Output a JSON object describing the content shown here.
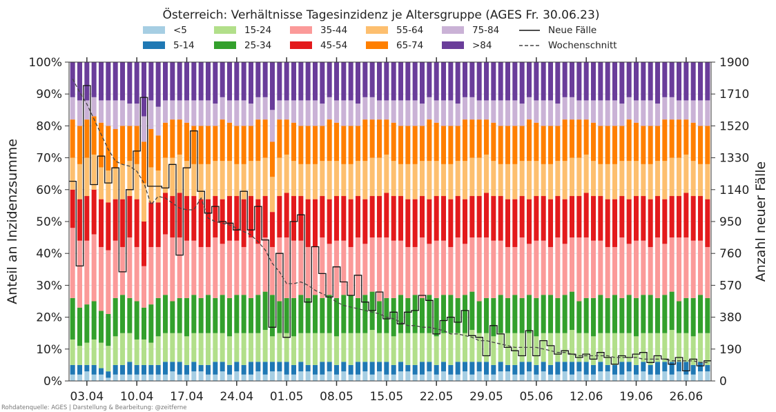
{
  "chart_data": {
    "type": "bar",
    "title": "Österreich: Verhältnisse Tagesinzidenz je Altersgruppe (AGES Fr. 30.06.23)",
    "ylabel_left": "Anteil an Inzidenzsumme",
    "ylabel_right": "Anzahl neuer Fälle",
    "source": "Rohdatenquelle: AGES | Darstellung & Bearbeitung: @zeitferne",
    "ylim_left": [
      0,
      100
    ],
    "ylim_right": [
      0,
      1900
    ],
    "left_ticks": [
      "0%",
      "10%",
      "20%",
      "30%",
      "40%",
      "50%",
      "60%",
      "70%",
      "80%",
      "90%",
      "100%"
    ],
    "right_ticks": [
      "0",
      "190",
      "380",
      "570",
      "760",
      "950",
      "1140",
      "1330",
      "1520",
      "1710",
      "1900"
    ],
    "x_ticks": [
      {
        "label": "03.04",
        "day": 2
      },
      {
        "label": "10.04",
        "day": 9
      },
      {
        "label": "17.04",
        "day": 16
      },
      {
        "label": "24.04",
        "day": 23
      },
      {
        "label": "01.05",
        "day": 30
      },
      {
        "label": "08.05",
        "day": 37
      },
      {
        "label": "15.05",
        "day": 44
      },
      {
        "label": "22.05",
        "day": 51
      },
      {
        "label": "29.05",
        "day": 58
      },
      {
        "label": "05.06",
        "day": 65
      },
      {
        "label": "12.06",
        "day": 72
      },
      {
        "label": "19.06",
        "day": 79
      },
      {
        "label": "26.06",
        "day": 86
      }
    ],
    "grid": true,
    "legend_position": "top",
    "age_groups": [
      {
        "name": "<5",
        "color": "#a6cee3"
      },
      {
        "name": "5-14",
        "color": "#1f78b4"
      },
      {
        "name": "15-24",
        "color": "#b2df8a"
      },
      {
        "name": "25-34",
        "color": "#33a02c"
      },
      {
        "name": "35-44",
        "color": "#fb9a99"
      },
      {
        "name": "45-54",
        "color": "#e31a1c"
      },
      {
        "name": "55-64",
        "color": "#fdbf6f"
      },
      {
        "name": "65-74",
        "color": "#ff7f00"
      },
      {
        "name": "75-84",
        "color": "#cab2d6"
      },
      {
        "name": ">84",
        "color": "#6a3d9a"
      }
    ],
    "line_series": [
      {
        "name": "Neue Fälle",
        "style": "solid",
        "color": "#111111"
      },
      {
        "name": "Wochenschnitt",
        "style": "dashed",
        "color": "#444444"
      }
    ],
    "dates": [
      "2023-04-01",
      "2023-04-02",
      "2023-04-03",
      "2023-04-04",
      "2023-04-05",
      "2023-04-06",
      "2023-04-07",
      "2023-04-08",
      "2023-04-09",
      "2023-04-10",
      "2023-04-11",
      "2023-04-12",
      "2023-04-13",
      "2023-04-14",
      "2023-04-15",
      "2023-04-16",
      "2023-04-17",
      "2023-04-18",
      "2023-04-19",
      "2023-04-20",
      "2023-04-21",
      "2023-04-22",
      "2023-04-23",
      "2023-04-24",
      "2023-04-25",
      "2023-04-26",
      "2023-04-27",
      "2023-04-28",
      "2023-04-29",
      "2023-04-30",
      "2023-05-01",
      "2023-05-02",
      "2023-05-03",
      "2023-05-04",
      "2023-05-05",
      "2023-05-06",
      "2023-05-07",
      "2023-05-08",
      "2023-05-09",
      "2023-05-10",
      "2023-05-11",
      "2023-05-12",
      "2023-05-13",
      "2023-05-14",
      "2023-05-15",
      "2023-05-16",
      "2023-05-17",
      "2023-05-18",
      "2023-05-19",
      "2023-05-20",
      "2023-05-21",
      "2023-05-22",
      "2023-05-23",
      "2023-05-24",
      "2023-05-25",
      "2023-05-26",
      "2023-05-27",
      "2023-05-28",
      "2023-05-29",
      "2023-05-30",
      "2023-05-31",
      "2023-06-01",
      "2023-06-02",
      "2023-06-03",
      "2023-06-04",
      "2023-06-05",
      "2023-06-06",
      "2023-06-07",
      "2023-06-08",
      "2023-06-09",
      "2023-06-10",
      "2023-06-11",
      "2023-06-12",
      "2023-06-13",
      "2023-06-14",
      "2023-06-15",
      "2023-06-16",
      "2023-06-17",
      "2023-06-18",
      "2023-06-19",
      "2023-06-20",
      "2023-06-21",
      "2023-06-22",
      "2023-06-23",
      "2023-06-24",
      "2023-06-25",
      "2023-06-26",
      "2023-06-27",
      "2023-06-28",
      "2023-06-29"
    ],
    "shares_pct": [
      [
        2,
        3,
        8,
        13,
        22,
        12,
        10,
        12,
        7,
        11
      ],
      [
        2,
        3,
        6,
        12,
        21,
        13,
        11,
        12,
        8,
        12
      ],
      [
        3,
        2,
        7,
        12,
        20,
        14,
        12,
        12,
        6,
        12
      ],
      [
        2,
        3,
        8,
        12,
        21,
        14,
        11,
        12,
        6,
        11
      ],
      [
        2,
        2,
        8,
        10,
        20,
        15,
        10,
        14,
        7,
        12
      ],
      [
        1,
        2,
        8,
        10,
        20,
        15,
        10,
        14,
        8,
        12
      ],
      [
        2,
        3,
        9,
        12,
        18,
        13,
        10,
        12,
        9,
        12
      ],
      [
        2,
        3,
        10,
        12,
        15,
        15,
        11,
        12,
        8,
        12
      ],
      [
        2,
        4,
        9,
        11,
        19,
        13,
        11,
        11,
        7,
        13
      ],
      [
        2,
        3,
        8,
        12,
        17,
        15,
        11,
        12,
        7,
        13
      ],
      [
        2,
        3,
        8,
        10,
        13,
        14,
        12,
        13,
        8,
        17
      ],
      [
        2,
        3,
        7,
        12,
        18,
        14,
        11,
        12,
        9,
        12
      ],
      [
        2,
        3,
        9,
        12,
        16,
        14,
        10,
        11,
        9,
        14
      ],
      [
        2,
        4,
        9,
        12,
        19,
        13,
        11,
        11,
        7,
        12
      ],
      [
        3,
        3,
        9,
        10,
        20,
        13,
        12,
        12,
        6,
        12
      ],
      [
        2,
        4,
        9,
        11,
        19,
        14,
        12,
        11,
        6,
        12
      ],
      [
        2,
        3,
        9,
        12,
        18,
        14,
        11,
        12,
        7,
        12
      ],
      [
        3,
        3,
        9,
        12,
        17,
        14,
        10,
        12,
        8,
        12
      ],
      [
        3,
        2,
        10,
        11,
        16,
        15,
        11,
        12,
        8,
        12
      ],
      [
        2,
        3,
        10,
        12,
        15,
        15,
        11,
        12,
        8,
        12
      ],
      [
        2,
        4,
        9,
        11,
        19,
        13,
        11,
        11,
        7,
        13
      ],
      [
        3,
        3,
        9,
        12,
        16,
        14,
        12,
        13,
        7,
        11
      ],
      [
        2,
        3,
        9,
        12,
        18,
        14,
        11,
        12,
        7,
        12
      ],
      [
        3,
        3,
        9,
        12,
        17,
        14,
        10,
        12,
        8,
        12
      ],
      [
        2,
        3,
        10,
        12,
        15,
        15,
        11,
        12,
        8,
        12
      ],
      [
        2,
        4,
        9,
        11,
        19,
        13,
        11,
        11,
        7,
        13
      ],
      [
        3,
        3,
        9,
        12,
        16,
        14,
        12,
        13,
        7,
        11
      ],
      [
        2,
        4,
        10,
        12,
        17,
        13,
        12,
        12,
        7,
        11
      ],
      [
        3,
        3,
        8,
        13,
        15,
        11,
        11,
        11,
        10,
        15
      ],
      [
        3,
        3,
        9,
        10,
        20,
        13,
        12,
        12,
        6,
        12
      ],
      [
        2,
        4,
        9,
        11,
        19,
        14,
        12,
        11,
        6,
        12
      ],
      [
        2,
        3,
        9,
        12,
        18,
        14,
        11,
        12,
        7,
        12
      ],
      [
        3,
        3,
        9,
        12,
        17,
        14,
        10,
        12,
        8,
        12
      ],
      [
        3,
        2,
        10,
        11,
        16,
        15,
        11,
        12,
        8,
        12
      ],
      [
        2,
        3,
        10,
        12,
        15,
        15,
        11,
        12,
        8,
        12
      ],
      [
        2,
        4,
        9,
        11,
        19,
        13,
        11,
        11,
        7,
        13
      ],
      [
        3,
        3,
        9,
        12,
        16,
        14,
        12,
        13,
        7,
        11
      ],
      [
        2,
        3,
        9,
        12,
        18,
        14,
        11,
        12,
        7,
        12
      ],
      [
        3,
        3,
        9,
        12,
        17,
        14,
        10,
        12,
        8,
        12
      ],
      [
        2,
        3,
        10,
        12,
        15,
        15,
        11,
        12,
        8,
        12
      ],
      [
        2,
        4,
        9,
        11,
        19,
        13,
        11,
        11,
        7,
        13
      ],
      [
        3,
        3,
        9,
        12,
        16,
        14,
        12,
        13,
        7,
        11
      ],
      [
        2,
        4,
        10,
        12,
        17,
        13,
        12,
        12,
        7,
        11
      ],
      [
        3,
        3,
        9,
        10,
        20,
        13,
        12,
        12,
        6,
        12
      ],
      [
        2,
        4,
        9,
        11,
        19,
        14,
        12,
        11,
        6,
        12
      ],
      [
        2,
        3,
        9,
        12,
        18,
        14,
        11,
        12,
        7,
        12
      ],
      [
        3,
        3,
        9,
        12,
        17,
        14,
        10,
        12,
        8,
        12
      ],
      [
        3,
        2,
        10,
        11,
        16,
        15,
        11,
        12,
        8,
        12
      ],
      [
        2,
        3,
        10,
        12,
        15,
        15,
        11,
        12,
        8,
        12
      ],
      [
        2,
        4,
        9,
        11,
        19,
        13,
        11,
        11,
        7,
        13
      ],
      [
        3,
        3,
        9,
        12,
        16,
        14,
        12,
        13,
        7,
        11
      ],
      [
        2,
        3,
        9,
        12,
        18,
        14,
        11,
        12,
        7,
        12
      ],
      [
        3,
        3,
        9,
        12,
        17,
        14,
        10,
        12,
        8,
        12
      ],
      [
        2,
        3,
        10,
        12,
        15,
        15,
        11,
        12,
        8,
        12
      ],
      [
        2,
        4,
        9,
        11,
        19,
        13,
        11,
        11,
        7,
        13
      ],
      [
        3,
        3,
        9,
        12,
        16,
        14,
        12,
        13,
        7,
        11
      ],
      [
        2,
        4,
        10,
        12,
        17,
        13,
        12,
        12,
        7,
        11
      ],
      [
        3,
        3,
        9,
        10,
        20,
        13,
        12,
        12,
        6,
        12
      ],
      [
        2,
        4,
        9,
        11,
        19,
        14,
        12,
        11,
        6,
        12
      ],
      [
        2,
        3,
        9,
        12,
        18,
        14,
        11,
        12,
        7,
        12
      ],
      [
        3,
        3,
        9,
        12,
        17,
        14,
        10,
        12,
        8,
        12
      ],
      [
        3,
        2,
        10,
        11,
        16,
        15,
        11,
        12,
        8,
        12
      ],
      [
        2,
        3,
        10,
        12,
        15,
        15,
        11,
        12,
        8,
        12
      ],
      [
        2,
        4,
        9,
        11,
        19,
        13,
        11,
        11,
        7,
        13
      ],
      [
        3,
        3,
        9,
        12,
        16,
        14,
        12,
        13,
        7,
        11
      ],
      [
        2,
        3,
        9,
        12,
        18,
        14,
        11,
        12,
        7,
        12
      ],
      [
        3,
        3,
        9,
        12,
        17,
        14,
        10,
        12,
        8,
        12
      ],
      [
        2,
        3,
        10,
        12,
        15,
        15,
        11,
        12,
        8,
        12
      ],
      [
        2,
        4,
        9,
        11,
        19,
        13,
        11,
        11,
        7,
        13
      ],
      [
        3,
        3,
        9,
        12,
        16,
        14,
        12,
        13,
        7,
        11
      ],
      [
        2,
        4,
        10,
        12,
        17,
        13,
        12,
        12,
        7,
        11
      ],
      [
        3,
        3,
        9,
        10,
        20,
        13,
        12,
        12,
        6,
        12
      ],
      [
        2,
        4,
        9,
        11,
        19,
        14,
        12,
        11,
        6,
        12
      ],
      [
        2,
        3,
        9,
        12,
        18,
        14,
        11,
        12,
        7,
        12
      ],
      [
        3,
        3,
        9,
        12,
        17,
        14,
        10,
        12,
        8,
        12
      ],
      [
        3,
        2,
        10,
        11,
        16,
        15,
        11,
        12,
        8,
        12
      ],
      [
        2,
        3,
        10,
        12,
        15,
        15,
        11,
        12,
        8,
        12
      ],
      [
        2,
        4,
        9,
        11,
        19,
        13,
        11,
        11,
        7,
        13
      ],
      [
        3,
        3,
        9,
        12,
        16,
        14,
        12,
        13,
        7,
        11
      ],
      [
        2,
        3,
        9,
        12,
        18,
        14,
        11,
        12,
        7,
        12
      ],
      [
        3,
        3,
        9,
        12,
        17,
        14,
        10,
        12,
        8,
        12
      ],
      [
        2,
        3,
        10,
        12,
        15,
        15,
        11,
        12,
        8,
        12
      ],
      [
        2,
        4,
        9,
        11,
        19,
        13,
        11,
        11,
        7,
        13
      ],
      [
        3,
        3,
        9,
        12,
        16,
        14,
        12,
        13,
        7,
        11
      ],
      [
        2,
        4,
        10,
        12,
        17,
        13,
        12,
        12,
        7,
        11
      ],
      [
        3,
        3,
        9,
        10,
        20,
        13,
        12,
        12,
        6,
        12
      ],
      [
        2,
        4,
        9,
        11,
        19,
        14,
        12,
        11,
        6,
        12
      ],
      [
        2,
        3,
        9,
        12,
        18,
        14,
        11,
        12,
        7,
        12
      ],
      [
        3,
        3,
        9,
        12,
        17,
        14,
        10,
        12,
        8,
        12
      ],
      [
        3,
        2,
        10,
        11,
        16,
        15,
        11,
        12,
        8,
        12
      ]
    ],
    "neue_faelle": [
      1190,
      685,
      1760,
      1170,
      1340,
      1180,
      1270,
      650,
      1140,
      1370,
      1690,
      1160,
      1160,
      1150,
      1290,
      750,
      1270,
      1490,
      1130,
      1000,
      1040,
      950,
      940,
      900,
      1130,
      900,
      1040,
      840,
      320,
      760,
      260,
      950,
      990,
      470,
      800,
      640,
      500,
      680,
      590,
      510,
      630,
      470,
      420,
      530,
      370,
      410,
      340,
      410,
      420,
      510,
      480,
      280,
      360,
      380,
      350,
      420,
      270,
      260,
      150,
      330,
      280,
      200,
      180,
      150,
      300,
      150,
      240,
      210,
      160,
      180,
      160,
      140,
      160,
      130,
      170,
      140,
      100,
      150,
      140,
      160,
      170,
      110,
      150,
      130,
      100,
      140,
      60,
      130,
      90,
      120
    ],
    "wochenschnitt": [
      1800,
      1720,
      1650,
      1560,
      1470,
      1380,
      1310,
      1290,
      1280,
      1250,
      1180,
      1050,
      1100,
      1090,
      1060,
      1030,
      1020,
      1020,
      1090,
      970,
      950,
      940,
      930,
      910,
      890,
      870,
      830,
      780,
      700,
      650,
      580,
      580,
      590,
      570,
      540,
      520,
      500,
      470,
      450,
      440,
      430,
      420,
      410,
      400,
      380,
      370,
      350,
      330,
      330,
      320,
      320,
      310,
      300,
      280,
      280,
      270,
      260,
      240,
      240,
      230,
      220,
      210,
      200,
      200,
      200,
      200,
      190,
      180,
      170,
      170,
      160,
      150,
      150,
      150,
      150,
      150,
      140,
      140,
      140,
      140,
      130,
      130,
      130,
      130,
      120,
      120,
      120,
      120,
      110,
      110
    ]
  }
}
